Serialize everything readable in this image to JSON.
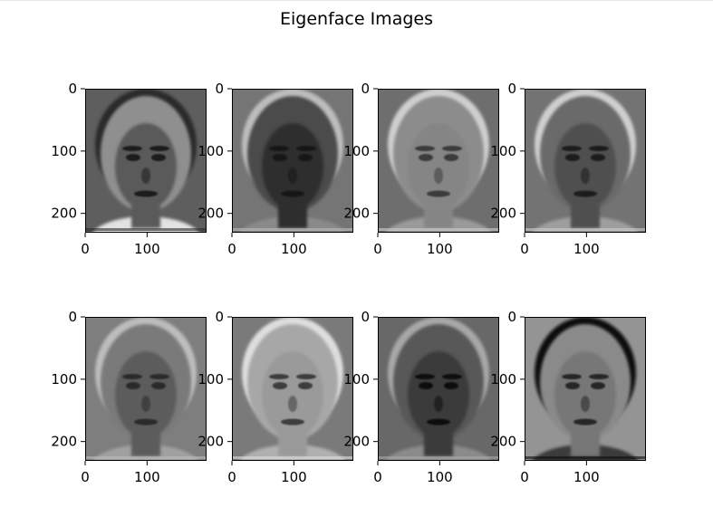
{
  "figure": {
    "title": "Eigenface Images"
  },
  "chart_data": {
    "type": "image-grid",
    "title": "Eigenface Images",
    "rows": 2,
    "cols": 4,
    "xlim": [
      0,
      196
    ],
    "ylim": [
      231,
      0
    ],
    "xticks": [
      0,
      100
    ],
    "yticks": [
      0,
      100,
      200
    ],
    "colormap": "gray",
    "panels": [
      {
        "id": "eigenface-1",
        "background": "#5e5e5e",
        "head": "#8f8f8f",
        "hair": "#2a2a2a",
        "face": "#5a5a5a",
        "features": "#1e1e1e",
        "shoulders": "#e2e2e2"
      },
      {
        "id": "eigenface-2",
        "background": "#757575",
        "head": "#4b4b4b",
        "hair": "#bdbdbd",
        "face": "#2e2e2e",
        "features": "#121212",
        "shoulders": "#8a8a8a"
      },
      {
        "id": "eigenface-3",
        "background": "#6e6e6e",
        "head": "#8c8c8c",
        "hair": "#cfcfcf",
        "face": "#858585",
        "features": "#3a3a3a",
        "shoulders": "#9a9a9a"
      },
      {
        "id": "eigenface-4",
        "background": "#737373",
        "head": "#6a6a6a",
        "hair": "#cfcfcf",
        "face": "#4f4f4f",
        "features": "#1e1e1e",
        "shoulders": "#9e9e9e"
      },
      {
        "id": "eigenface-5",
        "background": "#7e7e7e",
        "head": "#7a7a7a",
        "hair": "#bdbdbd",
        "face": "#5c5c5c",
        "features": "#2a2a2a",
        "shoulders": "#a0a0a0"
      },
      {
        "id": "eigenface-6",
        "background": "#7a7a7a",
        "head": "#a7a7a7",
        "hair": "#dedede",
        "face": "#9a9a9a",
        "features": "#3c3c3c",
        "shoulders": "#b0b0b0"
      },
      {
        "id": "eigenface-7",
        "background": "#686868",
        "head": "#585858",
        "hair": "#a8a8a8",
        "face": "#3a3a3a",
        "features": "#111111",
        "shoulders": "#8a8a8a"
      },
      {
        "id": "eigenface-8",
        "background": "#949494",
        "head": "#8a8a8a",
        "hair": "#0e0e0e",
        "face": "#777777",
        "features": "#262626",
        "shoulders": "#3a3a3a"
      }
    ]
  }
}
